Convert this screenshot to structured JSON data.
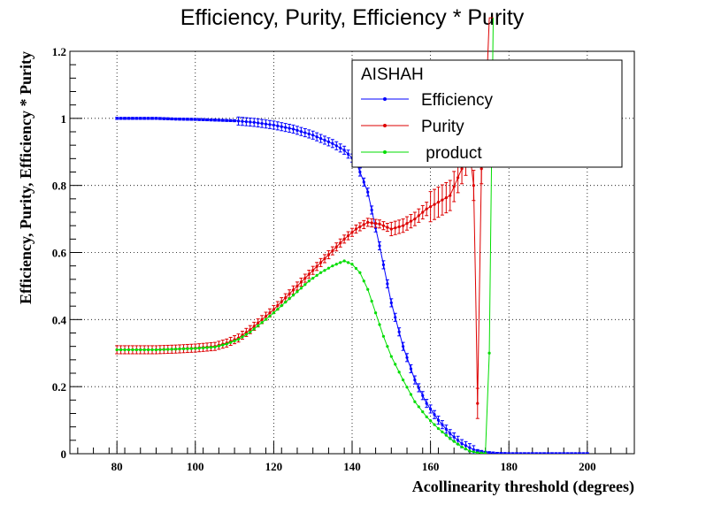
{
  "chart_data": {
    "type": "line",
    "title": "Efficiency, Purity, Efficiency * Purity",
    "xlabel": "Acollinearity threshold (degrees)",
    "ylabel": "Efficiency, Purity, Efficiency * Purity",
    "xlim": [
      68,
      212
    ],
    "ylim": [
      0,
      1.2
    ],
    "xticks": [
      80,
      100,
      120,
      140,
      160,
      180,
      200
    ],
    "yticks": [
      0,
      0.2,
      0.4,
      0.6,
      0.8,
      1,
      1.2
    ],
    "ytick_labels": [
      "0",
      "0.2",
      "0.4",
      "0.6",
      "0.8",
      "1",
      "1.2"
    ],
    "grid": true,
    "legend": {
      "title": "AISHAH",
      "position": "top-right",
      "entries": [
        "Efficiency",
        "Purity",
        " product"
      ]
    },
    "series": [
      {
        "name": "Efficiency",
        "color": "#0000ff",
        "x": [
          80,
          85,
          90,
          95,
          100,
          105,
          110,
          115,
          120,
          125,
          130,
          135,
          138,
          141,
          144,
          147,
          150,
          153,
          156,
          159,
          162,
          165,
          168,
          171,
          174,
          177,
          180,
          185,
          190,
          195,
          200
        ],
        "y": [
          1.0,
          1.0,
          1.0,
          0.998,
          0.997,
          0.995,
          0.993,
          0.988,
          0.98,
          0.968,
          0.95,
          0.925,
          0.905,
          0.87,
          0.78,
          0.62,
          0.45,
          0.32,
          0.22,
          0.15,
          0.1,
          0.06,
          0.03,
          0.012,
          0.004,
          0.001,
          0.0,
          0.0,
          0.0,
          0.0,
          0.0
        ]
      },
      {
        "name": "Purity",
        "color": "#dd0000",
        "x": [
          80,
          85,
          90,
          95,
          100,
          105,
          108,
          111,
          114,
          117,
          120,
          123,
          126,
          129,
          132,
          135,
          138,
          141,
          144,
          147,
          150,
          153,
          156,
          159,
          162,
          165,
          168,
          170,
          171,
          171.5,
          172,
          172.5,
          173,
          174,
          175,
          176
        ],
        "y": [
          0.31,
          0.31,
          0.31,
          0.312,
          0.315,
          0.32,
          0.33,
          0.345,
          0.37,
          0.4,
          0.43,
          0.465,
          0.5,
          0.535,
          0.57,
          0.605,
          0.64,
          0.67,
          0.69,
          0.685,
          0.67,
          0.68,
          0.7,
          0.73,
          0.75,
          0.77,
          0.85,
          0.9,
          0.8,
          0.5,
          0.15,
          0.5,
          0.85,
          1.0,
          1.3,
          1.3
        ]
      },
      {
        "name": " product",
        "color": "#00dd00",
        "x": [
          80,
          85,
          90,
          95,
          100,
          105,
          108,
          111,
          114,
          117,
          120,
          123,
          126,
          129,
          132,
          135,
          138,
          140,
          142,
          144,
          146,
          148,
          150,
          153,
          156,
          159,
          162,
          165,
          168,
          170,
          172,
          174,
          175,
          176
        ],
        "y": [
          0.31,
          0.31,
          0.31,
          0.312,
          0.314,
          0.318,
          0.327,
          0.341,
          0.363,
          0.391,
          0.42,
          0.452,
          0.483,
          0.515,
          0.54,
          0.56,
          0.575,
          0.565,
          0.54,
          0.49,
          0.42,
          0.35,
          0.29,
          0.22,
          0.155,
          0.11,
          0.075,
          0.045,
          0.02,
          0.008,
          0.003,
          0.001,
          0.3,
          1.3
        ]
      }
    ]
  }
}
